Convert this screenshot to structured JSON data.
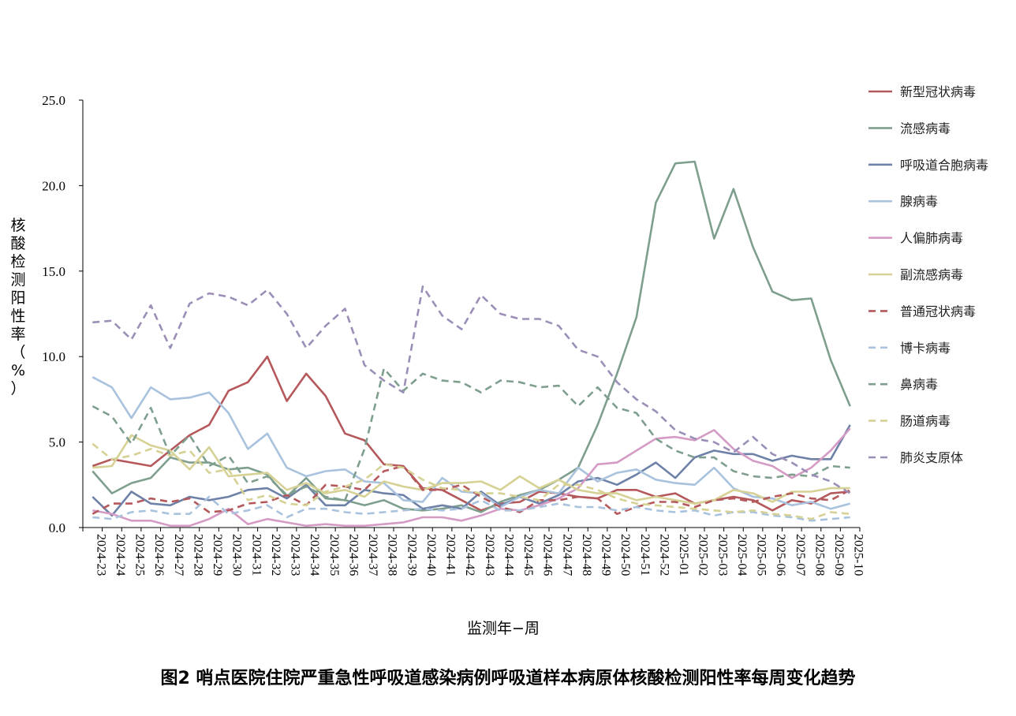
{
  "caption": "图2 哨点医院住院严重急性呼吸道感染病例呼吸道样本病原体核酸检测阳性率每周变化趋势",
  "chart_data": {
    "type": "line",
    "xlabel": "监测年−周",
    "ylabel": "核酸检测阳性率（%）",
    "ylim": [
      0,
      25
    ],
    "yticks": [
      "0.0",
      "5.0",
      "10.0",
      "15.0",
      "20.0",
      "25.0"
    ],
    "grid": false,
    "legend_position": "right",
    "categories": [
      "2024-23",
      "2024-24",
      "2024-25",
      "2024-26",
      "2024-27",
      "2024-28",
      "2024-29",
      "2024-30",
      "2024-31",
      "2024-32",
      "2024-33",
      "2024-34",
      "2024-35",
      "2024-36",
      "2024-37",
      "2024-38",
      "2024-39",
      "2024-40",
      "2024-41",
      "2024-42",
      "2024-43",
      "2024-44",
      "2024-45",
      "2024-46",
      "2024-47",
      "2024-48",
      "2024-49",
      "2024-50",
      "2024-51",
      "2024-52",
      "2025-01",
      "2025-02",
      "2025-03",
      "2025-04",
      "2025-05",
      "2025-06",
      "2025-07",
      "2025-08",
      "2025-09",
      "2025-10"
    ],
    "series": [
      {
        "name": "新型冠状病毒",
        "color": "#b5585b",
        "dash": false,
        "values": [
          3.6,
          4.0,
          3.8,
          3.6,
          4.5,
          5.4,
          6.0,
          8.0,
          8.5,
          10.0,
          7.4,
          9.0,
          7.7,
          5.5,
          5.1,
          3.7,
          3.6,
          2.3,
          2.2,
          1.6,
          1.0,
          1.4,
          1.5,
          2.1,
          2.0,
          1.8,
          1.7,
          2.2,
          2.2,
          1.8,
          2.0,
          1.4,
          1.6,
          1.8,
          1.6,
          1.0,
          1.6,
          1.4,
          2.0,
          2.1
        ]
      },
      {
        "name": "流感病毒",
        "color": "#7f9f8e",
        "dash": false,
        "values": [
          3.3,
          2.0,
          2.6,
          2.9,
          4.1,
          3.8,
          3.8,
          3.4,
          3.5,
          3.1,
          1.8,
          2.9,
          1.7,
          1.6,
          1.3,
          1.6,
          1.1,
          1.0,
          1.1,
          1.3,
          0.9,
          1.5,
          1.9,
          2.2,
          2.8,
          3.5,
          6.0,
          9.0,
          12.3,
          19.0,
          21.3,
          21.4,
          16.9,
          19.8,
          16.4,
          13.8,
          13.3,
          13.4,
          9.8,
          7.1
        ]
      },
      {
        "name": "呼吸道合胞病毒",
        "color": "#6e82a8",
        "dash": false,
        "values": [
          1.8,
          0.7,
          2.1,
          1.4,
          1.3,
          1.8,
          1.6,
          1.8,
          2.2,
          2.3,
          1.7,
          2.5,
          1.3,
          1.3,
          2.2,
          2.0,
          1.9,
          1.1,
          1.3,
          1.1,
          2.1,
          1.3,
          1.8,
          1.4,
          1.9,
          2.7,
          2.9,
          2.5,
          3.1,
          3.8,
          2.9,
          4.1,
          4.5,
          4.3,
          4.3,
          3.9,
          4.2,
          4.0,
          4.0,
          6.0
        ]
      },
      {
        "name": "腺病毒",
        "color": "#a9c2dd",
        "dash": false,
        "values": [
          8.8,
          8.2,
          6.4,
          8.2,
          7.5,
          7.6,
          7.9,
          6.7,
          4.6,
          5.5,
          3.5,
          3.0,
          3.3,
          3.4,
          2.7,
          2.6,
          1.6,
          1.5,
          2.9,
          2.1,
          2.0,
          1.2,
          1.8,
          2.2,
          2.0,
          3.5,
          2.7,
          3.2,
          3.4,
          2.8,
          2.6,
          2.5,
          3.5,
          2.3,
          1.8,
          1.7,
          1.3,
          1.5,
          1.1,
          1.4
        ]
      },
      {
        "name": "人偏肺病毒",
        "color": "#d49bc4",
        "dash": false,
        "values": [
          1.0,
          0.8,
          0.4,
          0.4,
          0.1,
          0.1,
          0.5,
          1.1,
          0.2,
          0.5,
          0.3,
          0.1,
          0.2,
          0.1,
          0.1,
          0.2,
          0.3,
          0.6,
          0.6,
          0.4,
          0.7,
          1.1,
          1.0,
          1.3,
          1.7,
          2.3,
          3.7,
          3.8,
          4.5,
          5.2,
          5.3,
          5.1,
          5.7,
          4.6,
          3.9,
          3.6,
          2.9,
          3.5,
          4.5,
          5.8
        ]
      },
      {
        "name": "副流感病毒",
        "color": "#d6d194",
        "dash": false,
        "values": [
          3.5,
          3.6,
          5.4,
          4.8,
          4.5,
          3.4,
          4.7,
          3.0,
          3.1,
          3.2,
          2.2,
          2.6,
          2.0,
          2.2,
          1.8,
          2.7,
          2.4,
          2.2,
          2.6,
          2.6,
          2.7,
          2.2,
          3.0,
          2.3,
          2.8,
          2.2,
          2.0,
          2.0,
          1.6,
          1.8,
          1.6,
          1.4,
          1.6,
          2.2,
          2.0,
          1.5,
          2.1,
          2.1,
          2.3,
          2.3
        ]
      },
      {
        "name": "普通冠状病毒",
        "color": "#b5585b",
        "dash": true,
        "values": [
          0.8,
          1.4,
          1.4,
          1.7,
          1.5,
          1.7,
          0.9,
          1.0,
          1.4,
          1.5,
          1.9,
          1.3,
          2.5,
          2.4,
          2.2,
          3.3,
          3.6,
          2.2,
          2.2,
          2.5,
          1.8,
          1.2,
          0.9,
          1.6,
          1.6,
          1.8,
          1.7,
          0.8,
          1.2,
          1.5,
          1.5,
          1.2,
          1.6,
          1.7,
          1.5,
          1.8,
          2.0,
          1.7,
          1.6,
          2.2
        ]
      },
      {
        "name": "博卡病毒",
        "color": "#a9c2dd",
        "dash": true,
        "values": [
          0.6,
          0.5,
          0.9,
          1.0,
          0.8,
          0.8,
          1.8,
          0.8,
          1.0,
          1.3,
          0.6,
          1.1,
          1.1,
          0.9,
          0.8,
          0.9,
          1.0,
          1.1,
          1.0,
          1.1,
          1.6,
          1.0,
          1.0,
          1.2,
          1.4,
          1.2,
          1.2,
          1.0,
          1.2,
          1.0,
          0.9,
          1.0,
          0.7,
          0.9,
          0.9,
          0.7,
          0.6,
          0.4,
          0.5,
          0.6
        ]
      },
      {
        "name": "鼻病毒",
        "color": "#7f9f8e",
        "dash": true,
        "values": [
          7.1,
          6.5,
          4.9,
          7.0,
          4.2,
          5.4,
          3.6,
          4.2,
          2.6,
          3.0,
          1.9,
          2.4,
          1.8,
          1.6,
          4.6,
          9.3,
          8.0,
          9.0,
          8.6,
          8.5,
          7.9,
          8.6,
          8.5,
          8.2,
          8.3,
          7.1,
          8.2,
          7.0,
          6.7,
          5.2,
          4.5,
          4.1,
          4.1,
          3.3,
          3.0,
          2.9,
          3.1,
          3.0,
          3.6,
          3.5
        ]
      },
      {
        "name": "肠道病毒",
        "color": "#d6d194",
        "dash": true,
        "values": [
          4.9,
          4.0,
          4.2,
          4.6,
          4.2,
          4.5,
          3.2,
          3.4,
          1.6,
          1.9,
          1.4,
          1.3,
          2.1,
          2.4,
          2.8,
          3.7,
          3.5,
          2.8,
          2.3,
          2.2,
          2.0,
          2.0,
          1.8,
          1.6,
          2.5,
          2.5,
          2.2,
          1.7,
          1.4,
          1.3,
          1.2,
          1.1,
          1.0,
          0.9,
          1.0,
          0.8,
          0.7,
          0.5,
          0.9,
          0.8
        ]
      },
      {
        "name": "肺炎支原体",
        "color": "#9c8fb7",
        "dash": true,
        "values": [
          12.0,
          12.1,
          11.0,
          13.0,
          10.5,
          13.1,
          13.7,
          13.5,
          13.0,
          13.9,
          12.5,
          10.5,
          11.8,
          12.8,
          9.5,
          8.6,
          7.9,
          14.1,
          12.4,
          11.6,
          13.6,
          12.5,
          12.2,
          12.2,
          11.8,
          10.4,
          10.0,
          8.5,
          7.5,
          6.8,
          5.7,
          5.2,
          5.0,
          4.4,
          5.3,
          4.3,
          3.8,
          3.1,
          2.7,
          2.0
        ]
      }
    ]
  }
}
